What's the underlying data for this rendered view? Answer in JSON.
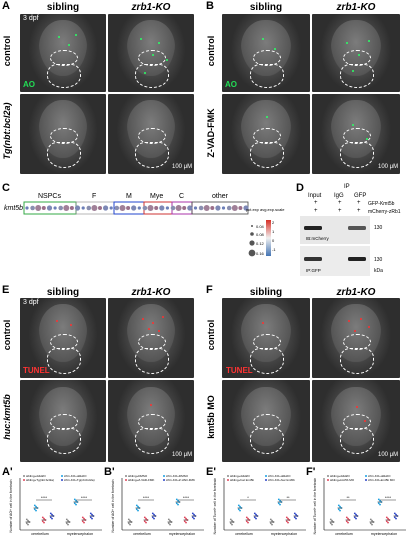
{
  "panels": {
    "A": {
      "letter": "A",
      "col1": "sibling",
      "col2": "zrb1-KO",
      "row1": "control",
      "row2": "Tg(nbt:bcl2a)",
      "age": "3 dpf",
      "stain": "AO",
      "scale": "100 μM"
    },
    "B": {
      "letter": "B",
      "col1": "sibling",
      "col2": "zrb1-KO",
      "row1": "control",
      "row2": "Z-VAD-FMK",
      "stain": "AO",
      "scale": "100 μM"
    },
    "C": {
      "letter": "C",
      "gene": "kmt5b",
      "groups": [
        "NSPCs",
        "F",
        "M",
        "Mye",
        "C",
        "other"
      ],
      "legend_pct_title": "pct.exp",
      "legend_avg_title": "avg.exp.scale",
      "pct_values": [
        "0.04",
        "0.08",
        "0.12",
        "0.16"
      ],
      "avg_values": [
        "2",
        "1",
        "0",
        "-1"
      ]
    },
    "D": {
      "letter": "D",
      "ip_label": "IP",
      "input_label": "Input",
      "igg_label": "IgG",
      "gfp_label": "GFP",
      "row1": "GFP-Kmt5b",
      "row2": "mCherry-zRb1",
      "plus": "+",
      "ib1": "IB:mCherry",
      "ib2": "IP:GFP",
      "mw1": "130",
      "mw2": "130",
      "kda": "kDa"
    },
    "E": {
      "letter": "E",
      "col1": "sibling",
      "col2": "zrb1-KO",
      "row1": "control",
      "row2": "huc:kmt5b",
      "age": "3 dpf",
      "stain": "TUNEL",
      "scale": "100 μM"
    },
    "F": {
      "letter": "F",
      "col1": "sibling",
      "col2": "zrb1-KO",
      "row1": "control",
      "row2": "kmt5b MO",
      "stain": "TUNEL",
      "scale": "100 μM"
    },
    "A2": {
      "letter": "A'",
      "ylabel": "Number of AO+ cell in the forebrain",
      "groups": [
        "cerebellum",
        "myelencephalon"
      ],
      "legend": [
        "sibling+ddH2O",
        "zrb1-KO+ddH2O",
        "sibling+Tg(nbt:bcl2a)",
        "zrb1-KO+Tg(nbt:bcl2a)"
      ],
      "sig": [
        "****",
        "****"
      ]
    },
    "B2": {
      "letter": "B'",
      "ylabel": "Number of AO+ cell in the forebrain",
      "groups": [
        "cerebellum",
        "myelencephalon"
      ],
      "legend": [
        "sibling+DMSO",
        "zrb1-KO+DMSO",
        "sibling+Z-VAD-FMK",
        "zrb1-KO+Z-VAD-FMK"
      ],
      "sig": [
        "****",
        "****"
      ]
    },
    "E2": {
      "letter": "E'",
      "ylabel": "Number of Tunel+ cell in the forebrain",
      "groups": [
        "cerebellum",
        "myelencephalon"
      ],
      "legend": [
        "sibling+ddH2O",
        "zrb1-KO+ddH2O",
        "sibling+huc:kmt5b",
        "zrb1-KO+huc:kmt5b"
      ],
      "sig": [
        "*",
        "**"
      ]
    },
    "F2": {
      "letter": "F'",
      "ylabel": "Number of Tunel+ cell in the forebrain",
      "groups": [
        "cerebellum",
        "myelencephalon"
      ],
      "legend": [
        "sibling+ddH2O",
        "zrb1-KO+ddH2O",
        "sibling+kmt5b MO",
        "zrb1-KO+kmt5b MO"
      ],
      "sig": [
        "**",
        "****"
      ]
    }
  },
  "colors": {
    "ao_green": "#22dd55",
    "tunel_red": "#ff3333",
    "nspc": "#33aa44",
    "f": "#ffffff",
    "m": "#2244cc",
    "mye": "#cc3333",
    "c": "#aa33aa",
    "other": "#444444"
  }
}
